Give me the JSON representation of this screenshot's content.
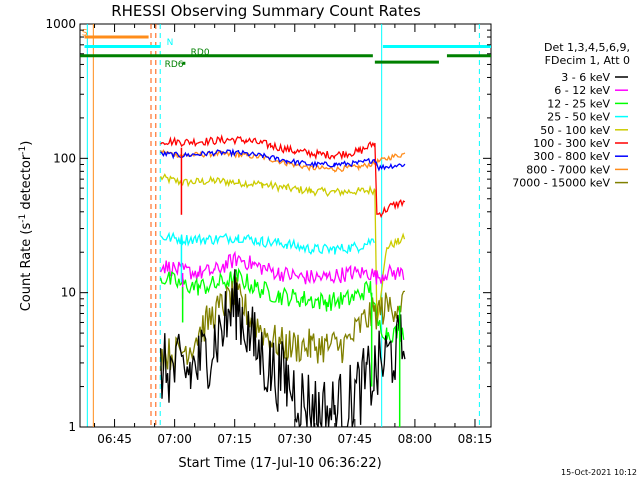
{
  "chart_data": {
    "type": "line",
    "title": "RHESSI Observing Summary Count Rates",
    "xlabel": "Start Time (17-Jul-10 06:36:22)",
    "ylabel_parts": [
      "Count Rate (s",
      "-1",
      " detector",
      "-1",
      ")"
    ],
    "y_scale": "log",
    "ylim": [
      1,
      1000
    ],
    "y_ticks": [
      {
        "value": 1,
        "label": "1"
      },
      {
        "value": 10,
        "label": "10"
      },
      {
        "value": 100,
        "label": "100"
      },
      {
        "value": 1000,
        "label": "1000"
      }
    ],
    "xlim_minutes": [
      36.37,
      139.0
    ],
    "x_ticks": [
      {
        "minute": 45,
        "label": "06:45"
      },
      {
        "minute": 60,
        "label": "07:00"
      },
      {
        "minute": 75,
        "label": "07:15"
      },
      {
        "minute": 90,
        "label": "07:30"
      },
      {
        "minute": 105,
        "label": "07:45"
      },
      {
        "minute": 120,
        "label": "08:00"
      },
      {
        "minute": 135,
        "label": "08:15"
      }
    ],
    "legend": {
      "placement": "right",
      "header": [
        "Det 1,3,4,5,6,9,",
        "FDecim 1, Att 0"
      ],
      "entries": [
        {
          "label": "3 - 6 keV",
          "color": "#000000"
        },
        {
          "label": "6 - 12 keV",
          "color": "#ff00ff"
        },
        {
          "label": "12 - 25 keV",
          "color": "#00ff00"
        },
        {
          "label": "25 - 50 keV",
          "color": "#00ffff"
        },
        {
          "label": "50 - 100 keV",
          "color": "#cccc00"
        },
        {
          "label": "100 - 300 keV",
          "color": "#ff0000"
        },
        {
          "label": "300 - 800 keV",
          "color": "#0000ff"
        },
        {
          "label": "800 - 7000 keV",
          "color": "#ff8c1a"
        },
        {
          "label": "7000 - 15000 keV",
          "color": "#808000"
        }
      ]
    },
    "series": [
      {
        "name": "50 - 100 keV",
        "color": "#cccc00",
        "noise": 0.03,
        "points": [
          [
            56.5,
            72
          ],
          [
            62,
            66
          ],
          [
            70,
            68
          ],
          [
            76,
            66
          ],
          [
            82,
            64
          ],
          [
            88,
            60
          ],
          [
            94,
            57
          ],
          [
            100,
            56
          ],
          [
            106,
            57
          ],
          [
            110,
            58
          ],
          [
            110.5,
            6
          ],
          [
            112,
            13
          ],
          [
            113,
            22
          ],
          [
            116,
            24
          ],
          [
            117.5,
            26
          ]
        ]
      },
      {
        "name": "800 - 7000 keV",
        "color": "#ff8c1a",
        "noise": 0.02,
        "points": [
          [
            56.5,
            112
          ],
          [
            62,
            105
          ],
          [
            70,
            108
          ],
          [
            76,
            106
          ],
          [
            82,
            102
          ],
          [
            88,
            92
          ],
          [
            94,
            85
          ],
          [
            100,
            83
          ],
          [
            106,
            86
          ],
          [
            110,
            92
          ],
          [
            111,
            95
          ],
          [
            114,
            102
          ],
          [
            117.5,
            108
          ]
        ]
      },
      {
        "name": "100 - 300 keV",
        "color": "#ff0000",
        "noise": 0.03,
        "points": [
          [
            56.5,
            135
          ],
          [
            62,
            132
          ],
          [
            70,
            135
          ],
          [
            74,
            138
          ],
          [
            78,
            136
          ],
          [
            84,
            125
          ],
          [
            90,
            113
          ],
          [
            96,
            107
          ],
          [
            100,
            106
          ],
          [
            106,
            112
          ],
          [
            110,
            130
          ],
          [
            110.5,
            38
          ],
          [
            112,
            40
          ],
          [
            114,
            44
          ],
          [
            117.5,
            48
          ]
        ]
      },
      {
        "name": "300 - 800 keV",
        "color": "#0000ff",
        "noise": 0.02,
        "points": [
          [
            56.5,
            108
          ],
          [
            62,
            105
          ],
          [
            70,
            110
          ],
          [
            76,
            110
          ],
          [
            82,
            104
          ],
          [
            88,
            96
          ],
          [
            94,
            90
          ],
          [
            100,
            90
          ],
          [
            106,
            92
          ],
          [
            110,
            98
          ],
          [
            111,
            85
          ],
          [
            114,
            88
          ],
          [
            117.5,
            90
          ]
        ]
      },
      {
        "name": "25 - 50 keV",
        "color": "#00ffff",
        "noise": 0.04,
        "points": [
          [
            56.5,
            26
          ],
          [
            62,
            25
          ],
          [
            70,
            25
          ],
          [
            76,
            26
          ],
          [
            82,
            24
          ],
          [
            88,
            23
          ],
          [
            94,
            21
          ],
          [
            100,
            21
          ],
          [
            106,
            22
          ],
          [
            110,
            25
          ]
        ]
      },
      {
        "name": "6 - 12 keV",
        "color": "#ff00ff",
        "noise": 0.06,
        "points": [
          [
            56.5,
            16
          ],
          [
            62,
            14.5
          ],
          [
            66,
            14
          ],
          [
            70,
            14.5
          ],
          [
            74,
            17
          ],
          [
            76,
            18
          ],
          [
            80,
            16
          ],
          [
            86,
            14
          ],
          [
            92,
            13
          ],
          [
            98,
            13
          ],
          [
            104,
            14
          ],
          [
            109,
            14
          ],
          [
            110.5,
            13
          ],
          [
            113,
            14
          ],
          [
            117.5,
            14
          ]
        ]
      },
      {
        "name": "12 - 25 keV",
        "color": "#00ff00",
        "noise": 0.07,
        "points": [
          [
            56.5,
            13
          ],
          [
            62,
            11.5
          ],
          [
            66,
            11
          ],
          [
            70,
            11.5
          ],
          [
            74,
            12.5
          ],
          [
            76,
            13
          ],
          [
            80,
            11
          ],
          [
            86,
            9.5
          ],
          [
            92,
            9
          ],
          [
            98,
            8.5
          ],
          [
            104,
            9
          ],
          [
            109,
            11
          ],
          [
            110.5,
            6
          ],
          [
            113,
            5
          ],
          [
            117.5,
            5
          ]
        ]
      },
      {
        "name": "7000 - 15000 keV",
        "color": "#808000",
        "noise": 0.13,
        "points": [
          [
            56.5,
            3.5
          ],
          [
            60,
            3.5
          ],
          [
            64,
            4
          ],
          [
            66,
            5
          ],
          [
            68,
            6
          ],
          [
            70,
            7
          ],
          [
            72,
            8
          ],
          [
            74,
            9
          ],
          [
            75.5,
            9.5
          ],
          [
            77,
            8
          ],
          [
            80,
            6
          ],
          [
            84,
            4.5
          ],
          [
            88,
            4
          ],
          [
            94,
            4
          ],
          [
            98,
            4
          ],
          [
            102,
            4
          ],
          [
            104,
            4.5
          ],
          [
            106,
            5.5
          ],
          [
            108,
            6.5
          ],
          [
            110,
            7
          ],
          [
            112,
            7.5
          ],
          [
            114,
            8
          ],
          [
            117.5,
            8.5
          ]
        ]
      },
      {
        "name": "3 - 6 keV",
        "color": "#000000",
        "noise": 0.28,
        "points": [
          [
            56.5,
            2.7
          ],
          [
            60,
            2.6
          ],
          [
            64,
            2.6
          ],
          [
            66,
            3
          ],
          [
            68,
            3.5
          ],
          [
            70,
            4.5
          ],
          [
            72,
            5.5
          ],
          [
            74,
            7
          ],
          [
            75.5,
            8.5
          ],
          [
            77,
            6.5
          ],
          [
            80,
            4
          ],
          [
            84,
            2.7
          ],
          [
            88,
            2.2
          ],
          [
            92,
            1.6
          ],
          [
            96,
            1.3
          ],
          [
            100,
            1.3
          ],
          [
            104,
            1.6
          ],
          [
            108,
            2.2
          ],
          [
            110,
            2.5
          ],
          [
            112,
            3
          ],
          [
            114,
            3.5
          ],
          [
            117.5,
            4
          ]
        ]
      }
    ],
    "status_bars": [
      {
        "label": "S",
        "color": "#ff8c1a",
        "value": 800,
        "start": 37.5,
        "end": 53.5
      },
      {
        "label": "N",
        "color": "#00ffff",
        "value": 680,
        "start": 37.5,
        "end": 56.5
      },
      {
        "label": "N",
        "color": "#00ffff",
        "value": 680,
        "start": 112,
        "end": 139
      },
      {
        "label": "RD0",
        "color": "#008000",
        "value": 580,
        "start": 36.4,
        "end": 109.5
      },
      {
        "label": "RD0",
        "color": "#008000",
        "value": 520,
        "start": 110,
        "end": 126
      },
      {
        "label": "RD0",
        "color": "#008000",
        "value": 580,
        "start": 128,
        "end": 139
      }
    ],
    "status_labels": [
      {
        "text": "S",
        "color": "#ff8c1a",
        "minute": 36.8,
        "value": 820
      },
      {
        "text": "N",
        "color": "#00ffff",
        "minute": 58,
        "value": 700
      },
      {
        "text": "RD0",
        "color": "#008000",
        "minute": 64,
        "value": 590
      },
      {
        "text": "RD6",
        "color": "#008000",
        "minute": 57.5,
        "value": 480
      }
    ],
    "markers": [
      {
        "color": "#008000",
        "minute": 62.3,
        "value": 510
      }
    ],
    "vertical_lines": [
      {
        "minute": 38.2,
        "color": "#00ffff",
        "dashed": false
      },
      {
        "minute": 39.7,
        "color": "#ff8c1a",
        "dashed": false
      },
      {
        "minute": 54.1,
        "color": "#ff5500",
        "dashed": true
      },
      {
        "minute": 55.3,
        "color": "#ff5500",
        "dashed": true
      },
      {
        "minute": 56.4,
        "color": "#00ffff",
        "dashed": true
      },
      {
        "minute": 111.7,
        "color": "#00ffff",
        "dashed": false
      },
      {
        "minute": 136.1,
        "color": "#00ffff",
        "dashed": true
      }
    ],
    "dips": [
      {
        "minute": 61.7,
        "color": "#ff0000",
        "from": 120,
        "to": 38
      },
      {
        "minute": 61.7,
        "color": "#00ffff",
        "from": 25,
        "to": 12
      },
      {
        "minute": 62.0,
        "color": "#ff00ff",
        "from": 14,
        "to": 9
      },
      {
        "minute": 62.0,
        "color": "#00ff00",
        "from": 11,
        "to": 6
      },
      {
        "minute": 109.2,
        "color": "#00ff00",
        "from": 10,
        "to": 2
      },
      {
        "minute": 116.2,
        "color": "#00ff00",
        "from": 8,
        "to": 1
      }
    ],
    "footer": "15-Oct-2021 10:12"
  }
}
